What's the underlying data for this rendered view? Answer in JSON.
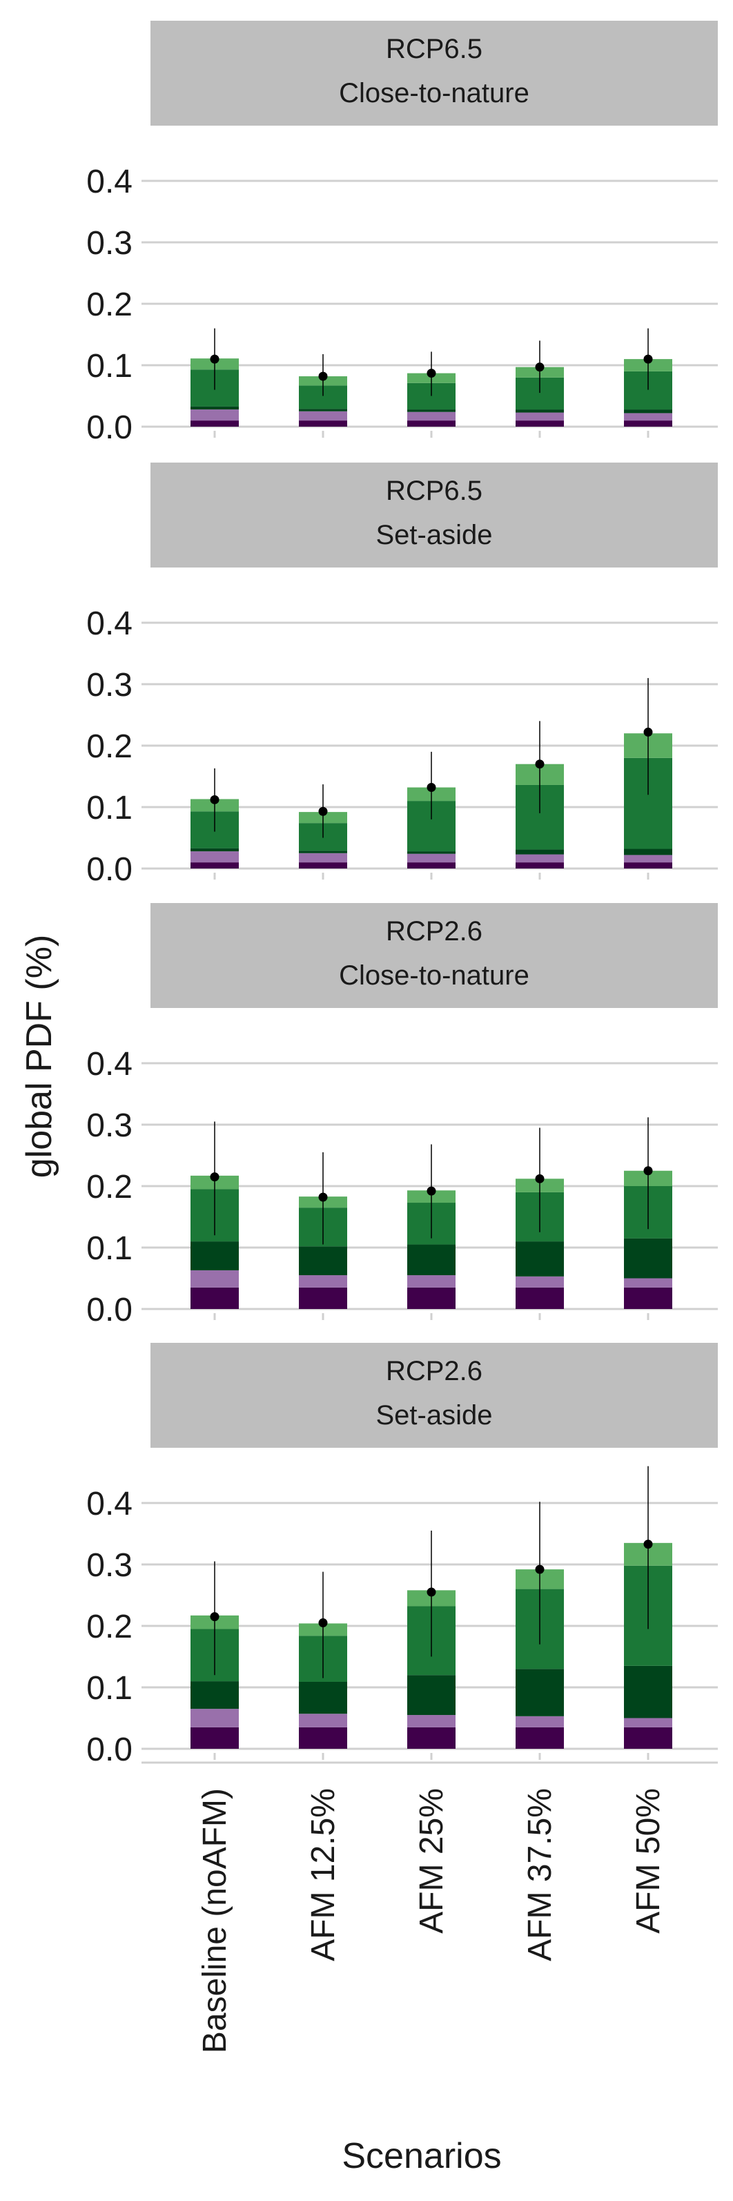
{
  "chart_data": {
    "type": "bar",
    "stacked": true,
    "xlabel": "Scenarios",
    "ylabel": "global PDF (%)",
    "categories": [
      "Baseline (noAFM)",
      "AFM 12.5%",
      "AFM 25%",
      "AFM 37.5%",
      "AFM 50%"
    ],
    "yticks": [
      "0.0",
      "0.1",
      "0.2",
      "0.3",
      "0.4"
    ],
    "ylim": [
      0,
      0.45
    ],
    "grid": true,
    "legend": "none",
    "colors": [
      "#40004b",
      "#9970ab",
      "#00441b",
      "#1b7837",
      "#5aae61"
    ],
    "panels": [
      {
        "strip": [
          "RCP6.5",
          "Close-to-nature"
        ],
        "stacks": [
          [
            0.01,
            0.018,
            0.005,
            0.06,
            0.018
          ],
          [
            0.01,
            0.015,
            0.004,
            0.038,
            0.015
          ],
          [
            0.01,
            0.014,
            0.004,
            0.043,
            0.016
          ],
          [
            0.01,
            0.013,
            0.005,
            0.052,
            0.017
          ],
          [
            0.01,
            0.012,
            0.006,
            0.062,
            0.02
          ]
        ],
        "means": [
          0.11,
          0.082,
          0.087,
          0.097,
          0.11
        ],
        "err_low": [
          0.06,
          0.05,
          0.05,
          0.055,
          0.06
        ],
        "err_high": [
          0.16,
          0.118,
          0.122,
          0.14,
          0.16
        ]
      },
      {
        "strip": [
          "RCP6.5",
          "Set-aside"
        ],
        "stacks": [
          [
            0.01,
            0.018,
            0.005,
            0.06,
            0.02
          ],
          [
            0.01,
            0.015,
            0.004,
            0.045,
            0.018
          ],
          [
            0.01,
            0.014,
            0.004,
            0.082,
            0.022
          ],
          [
            0.01,
            0.013,
            0.008,
            0.105,
            0.034
          ],
          [
            0.01,
            0.012,
            0.01,
            0.148,
            0.04
          ]
        ],
        "means": [
          0.112,
          0.093,
          0.132,
          0.17,
          0.222
        ],
        "err_low": [
          0.06,
          0.05,
          0.08,
          0.09,
          0.12
        ],
        "err_high": [
          0.163,
          0.137,
          0.19,
          0.24,
          0.31
        ]
      },
      {
        "strip": [
          "RCP2.6",
          "Close-to-nature"
        ],
        "stacks": [
          [
            0.035,
            0.028,
            0.047,
            0.085,
            0.022
          ],
          [
            0.035,
            0.02,
            0.047,
            0.063,
            0.018
          ],
          [
            0.035,
            0.02,
            0.05,
            0.068,
            0.02
          ],
          [
            0.035,
            0.018,
            0.057,
            0.08,
            0.022
          ],
          [
            0.035,
            0.015,
            0.065,
            0.085,
            0.025
          ]
        ],
        "means": [
          0.215,
          0.182,
          0.192,
          0.212,
          0.225
        ],
        "err_low": [
          0.12,
          0.105,
          0.115,
          0.125,
          0.13
        ],
        "err_high": [
          0.305,
          0.255,
          0.268,
          0.295,
          0.312
        ]
      },
      {
        "strip": [
          "RCP2.6",
          "Set-aside"
        ],
        "stacks": [
          [
            0.035,
            0.03,
            0.045,
            0.085,
            0.022
          ],
          [
            0.035,
            0.022,
            0.052,
            0.075,
            0.02
          ],
          [
            0.035,
            0.02,
            0.065,
            0.112,
            0.026
          ],
          [
            0.035,
            0.018,
            0.077,
            0.13,
            0.032
          ],
          [
            0.035,
            0.015,
            0.085,
            0.163,
            0.037
          ]
        ],
        "means": [
          0.215,
          0.205,
          0.255,
          0.292,
          0.333
        ],
        "err_low": [
          0.12,
          0.115,
          0.15,
          0.17,
          0.195
        ],
        "err_high": [
          0.305,
          0.288,
          0.355,
          0.402,
          0.46
        ]
      }
    ]
  }
}
